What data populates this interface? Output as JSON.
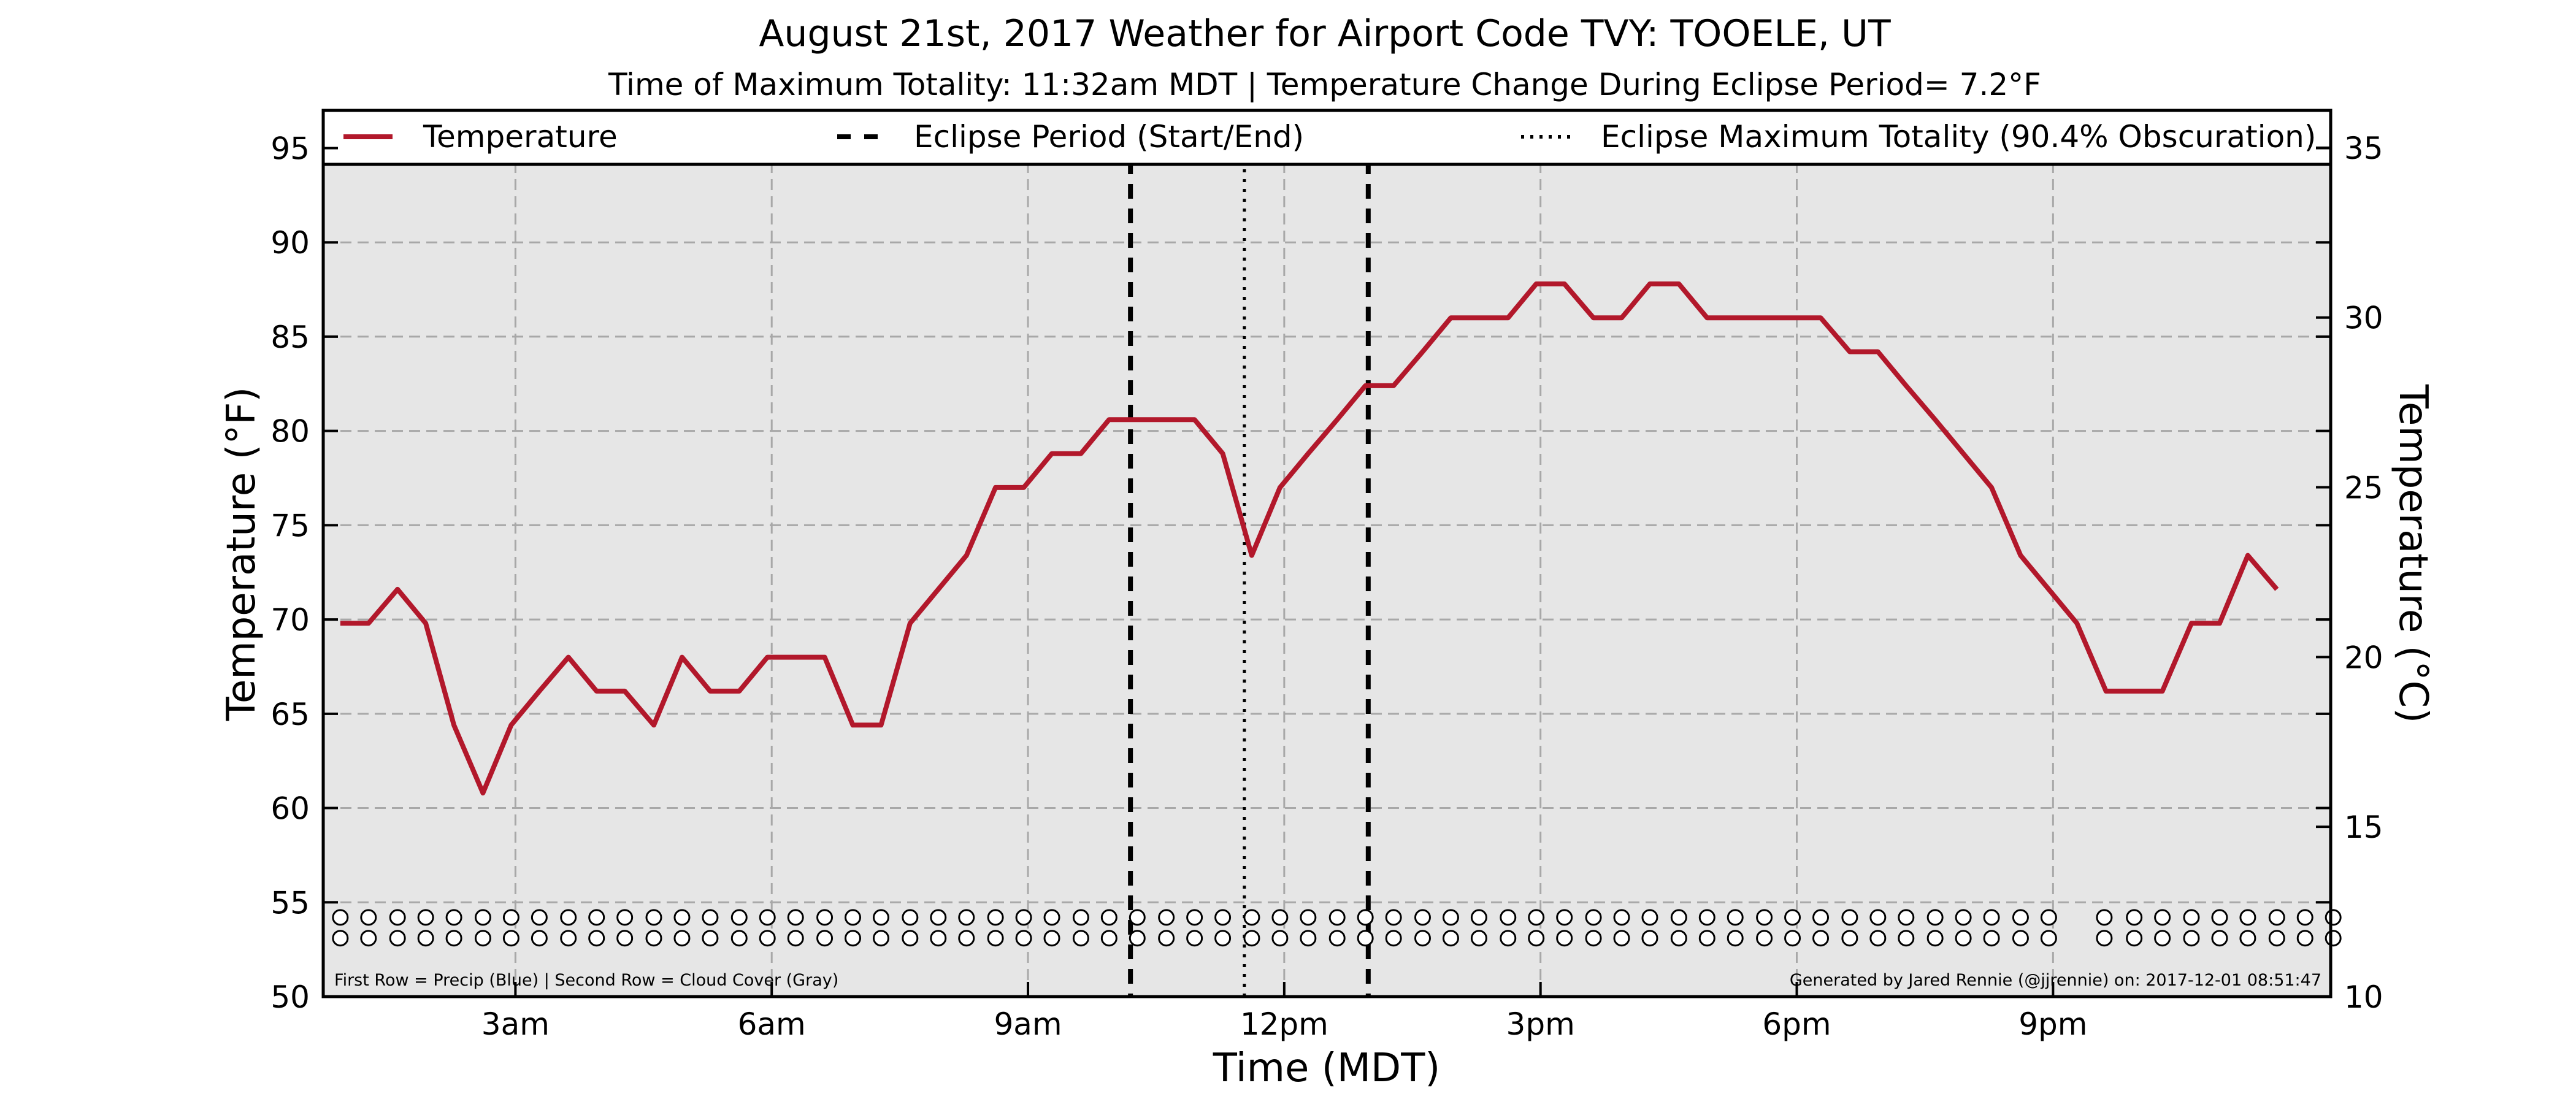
{
  "chart_data": {
    "type": "line",
    "title": "August 21st, 2017 Weather for Airport Code TVY: TOOELE, UT",
    "subtitle": "Time of Maximum Totality: 11:32am MDT | Temperature Change During Eclipse Period= 7.2°F",
    "xlabel": "Time (MDT)",
    "ylabel": "Temperature (°F)",
    "y2label": "Temperature (°C)",
    "x_unit": "hours after midnight MDT, 2017-08-21",
    "xlim": [
      0.75,
      24.25
    ],
    "ylim": [
      50,
      97
    ],
    "y2lim": [
      10,
      36.1
    ],
    "x_ticks": [
      {
        "value": 3,
        "label": "3am"
      },
      {
        "value": 6,
        "label": "6am"
      },
      {
        "value": 9,
        "label": "9am"
      },
      {
        "value": 12,
        "label": "12pm"
      },
      {
        "value": 15,
        "label": "3pm"
      },
      {
        "value": 18,
        "label": "6pm"
      },
      {
        "value": 21,
        "label": "9pm"
      }
    ],
    "y_ticks": [
      {
        "value": 50,
        "label": "50"
      },
      {
        "value": 55,
        "label": "55"
      },
      {
        "value": 60,
        "label": "60"
      },
      {
        "value": 65,
        "label": "65"
      },
      {
        "value": 70,
        "label": "70"
      },
      {
        "value": 75,
        "label": "75"
      },
      {
        "value": 80,
        "label": "80"
      },
      {
        "value": 85,
        "label": "85"
      },
      {
        "value": 90,
        "label": "90"
      },
      {
        "value": 95,
        "label": "95"
      }
    ],
    "y2_ticks": [
      {
        "value": 10,
        "label": "10"
      },
      {
        "value": 15,
        "label": "15"
      },
      {
        "value": 20,
        "label": "20"
      },
      {
        "value": 25,
        "label": "25"
      },
      {
        "value": 30,
        "label": "30"
      },
      {
        "value": 35,
        "label": "35"
      }
    ],
    "grid": true,
    "legend_position": "top, spanning full width",
    "legend": [
      {
        "label": "Temperature",
        "style": "solid",
        "color": "#b2182b"
      },
      {
        "label": "Eclipse Period (Start/End)",
        "style": "dashed",
        "color": "#000000"
      },
      {
        "label": "Eclipse Maximum Totality (90.4% Obscuration)",
        "style": "dotted",
        "color": "#000000"
      }
    ],
    "series": [
      {
        "name": "Temperature",
        "color": "#b2182b",
        "x": [
          0.95,
          1.28,
          1.62,
          1.95,
          2.28,
          2.62,
          2.95,
          3.28,
          3.62,
          3.95,
          4.28,
          4.62,
          4.95,
          5.28,
          5.62,
          5.95,
          6.28,
          6.62,
          6.95,
          7.28,
          7.62,
          7.95,
          8.28,
          8.62,
          8.95,
          9.28,
          9.62,
          9.95,
          10.28,
          10.62,
          10.95,
          11.28,
          11.62,
          11.95,
          12.28,
          12.62,
          12.95,
          13.28,
          13.62,
          13.95,
          14.28,
          14.62,
          14.95,
          15.28,
          15.62,
          15.95,
          16.28,
          16.62,
          16.95,
          17.28,
          17.62,
          17.95,
          18.28,
          18.62,
          18.95,
          19.28,
          19.62,
          19.95,
          20.28,
          20.62,
          20.95,
          21.28,
          21.62,
          21.95,
          22.28,
          22.62,
          22.95,
          23.28,
          23.62,
          23.95,
          24.28
        ],
        "y": [
          69.8,
          69.8,
          71.6,
          69.8,
          64.4,
          60.8,
          64.4,
          66.2,
          68.0,
          66.2,
          66.2,
          64.4,
          68.0,
          66.2,
          66.2,
          68.0,
          68.0,
          68.0,
          64.4,
          64.4,
          69.8,
          71.6,
          73.4,
          77.0,
          77.0,
          78.8,
          78.8,
          80.6,
          80.6,
          80.6,
          80.6,
          78.8,
          73.4,
          77.0,
          78.8,
          80.6,
          82.4,
          82.4,
          84.2,
          86.0,
          86.0,
          86.0,
          87.8,
          87.8,
          86.0,
          86.0,
          87.8,
          87.8,
          86.0,
          86.0,
          86.0,
          86.0,
          86.0,
          84.2,
          84.2,
          82.4,
          80.6,
          78.8,
          77.0,
          73.4,
          71.6,
          69.8,
          66.2,
          66.2,
          66.2,
          69.8,
          69.8,
          73.4,
          71.6,
          null,
          null
        ]
      }
    ],
    "eclipse_start": 10.2,
    "eclipse_max": 11.5333,
    "eclipse_end": 12.9833,
    "observation_rows": {
      "precip_y": 54.2,
      "cloud_y": 53.1,
      "x": [
        0.95,
        1.28,
        1.62,
        1.95,
        2.28,
        2.62,
        2.95,
        3.28,
        3.62,
        3.95,
        4.28,
        4.62,
        4.95,
        5.28,
        5.62,
        5.95,
        6.28,
        6.62,
        6.95,
        7.28,
        7.62,
        7.95,
        8.28,
        8.62,
        8.95,
        9.28,
        9.62,
        9.95,
        10.28,
        10.62,
        10.95,
        11.28,
        11.62,
        11.95,
        12.28,
        12.62,
        12.95,
        13.28,
        13.62,
        13.95,
        14.28,
        14.62,
        14.95,
        15.28,
        15.62,
        15.95,
        16.28,
        16.62,
        16.95,
        17.28,
        17.62,
        17.95,
        18.28,
        18.62,
        18.95,
        19.28,
        19.62,
        19.95,
        20.28,
        20.62,
        20.95,
        21.6,
        21.95,
        22.28,
        22.62,
        22.95,
        23.28,
        23.62,
        23.95,
        24.28
      ]
    },
    "annotation_left": "First Row = Precip (Blue) | Second Row = Cloud Cover (Gray)",
    "annotation_right": "Generated by Jared Rennie (@jjrennie) on: 2017-12-01 08:51:47"
  }
}
